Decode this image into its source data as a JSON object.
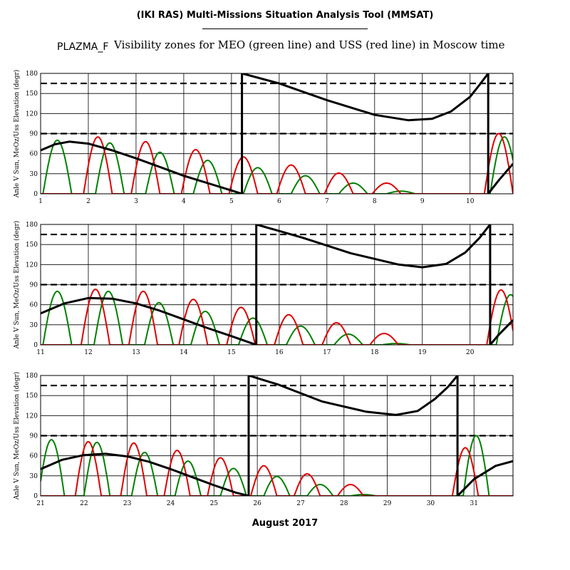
{
  "title": "(IKI RAS) Multi-Missions Situation Analysis Tool (MMSAT)",
  "prefix": "PLAZMA_F",
  "subtitle": "Visibility zones for MEO (green line) and USS (red line) in Moscow time",
  "xlabel": "August 2017",
  "colors": {
    "meo": "#008000",
    "uss": "#e00000",
    "sun": "#000000"
  },
  "chart_data": [
    {
      "type": "line",
      "ylabel": "Anle V Sun, MeOz/Uss Elevation (degr)",
      "xlim": [
        1,
        10.9
      ],
      "ylim": [
        0,
        180
      ],
      "xticks": [
        "1",
        "2",
        "3",
        "4",
        "5",
        "6",
        "7",
        "8",
        "9",
        "10"
      ],
      "yticks": [
        "0",
        "30",
        "60",
        "90",
        "120",
        "150",
        "180"
      ],
      "reference_lines_dashed": [
        90,
        165
      ],
      "sun_angle": {
        "segments": [
          {
            "x": [
              1.0,
              1.3,
              1.6,
              2.0,
              2.5,
              3.0,
              3.5,
              4.0,
              4.5,
              5.0,
              5.22
            ],
            "y": [
              65,
              74,
              78,
              75,
              65,
              53,
              40,
              27,
              16,
              5,
              0
            ]
          },
          {
            "x": [
              5.22,
              5.22,
              6.0,
              7.0,
              8.0,
              8.7,
              9.2,
              9.6,
              10.0,
              10.2,
              10.38
            ],
            "y": [
              0,
              180,
              165,
              140,
              118,
              110,
              112,
              123,
              145,
              163,
              180
            ]
          },
          {
            "x": [
              10.38,
              10.38,
              10.6,
              10.9
            ],
            "y": [
              180,
              0,
              20,
              45
            ]
          }
        ]
      },
      "meo_peaks": {
        "x": [
          1.35,
          2.45,
          3.5,
          4.5,
          5.55,
          6.55,
          7.55,
          8.55,
          9.55,
          10.72
        ],
        "y": [
          80,
          76,
          62,
          50,
          39,
          27,
          16,
          4,
          0,
          85
        ]
      },
      "uss_peaks": {
        "x": [
          2.2,
          3.2,
          4.25,
          5.25,
          6.25,
          7.25,
          8.25,
          10.6
        ],
        "y": [
          85,
          78,
          66,
          55,
          43,
          31,
          16,
          90
        ]
      }
    },
    {
      "type": "line",
      "ylabel": "Anle V Sun, MeOz/Uss Elevation (degr)",
      "xlim": [
        11,
        20.9
      ],
      "ylim": [
        0,
        180
      ],
      "xticks": [
        "11",
        "12",
        "13",
        "14",
        "15",
        "16",
        "17",
        "18",
        "19",
        "20"
      ],
      "yticks": [
        "0",
        "30",
        "60",
        "90",
        "120",
        "150",
        "180"
      ],
      "reference_lines_dashed": [
        90,
        165
      ],
      "sun_angle": {
        "segments": [
          {
            "x": [
              11.0,
              11.5,
              12.0,
              12.5,
              13.0,
              13.5,
              14.0,
              14.5,
              15.0,
              15.52
            ],
            "y": [
              47,
              62,
              70,
              69,
              62,
              51,
              38,
              25,
              13,
              0
            ]
          },
          {
            "x": [
              15.52,
              15.52,
              16.5,
              17.5,
              18.5,
              19.0,
              19.5,
              19.9,
              20.2,
              20.42
            ],
            "y": [
              0,
              180,
              160,
              137,
              120,
              116,
              121,
              138,
              160,
              180
            ]
          },
          {
            "x": [
              20.42,
              20.42,
              20.6,
              20.9
            ],
            "y": [
              180,
              0,
              15,
              37
            ]
          }
        ]
      },
      "meo_peaks": {
        "x": [
          11.35,
          12.42,
          13.48,
          14.45,
          15.45,
          16.45,
          17.45,
          18.45,
          19.45,
          20.85
        ],
        "y": [
          80,
          80,
          63,
          50,
          40,
          28,
          16,
          2,
          0,
          75
        ]
      },
      "uss_peaks": {
        "x": [
          12.15,
          13.15,
          14.2,
          15.2,
          16.2,
          17.2,
          18.2,
          20.65
        ],
        "y": [
          83,
          80,
          68,
          56,
          45,
          33,
          17,
          82
        ]
      }
    },
    {
      "type": "line",
      "ylabel": "Anle V Sun, MeOz/Uss Elevation (degr)",
      "xlim": [
        21,
        31.9
      ],
      "ylim": [
        0,
        180
      ],
      "xticks": [
        "21",
        "22",
        "23",
        "24",
        "25",
        "26",
        "27",
        "28",
        "29",
        "30",
        "31"
      ],
      "yticks": [
        "0",
        "30",
        "60",
        "90",
        "120",
        "150",
        "180"
      ],
      "reference_lines_dashed": [
        90,
        165
      ],
      "sun_angle": {
        "segments": [
          {
            "x": [
              21.0,
              21.5,
              22.0,
              22.5,
              23.0,
              23.5,
              24.0,
              24.5,
              25.0,
              25.5,
              25.8
            ],
            "y": [
              40,
              54,
              61,
              63,
              59,
              51,
              40,
              28,
              16,
              5,
              0
            ]
          },
          {
            "x": [
              25.8,
              25.8,
              26.5,
              27.5,
              28.5,
              29.2,
              29.7,
              30.1,
              30.4,
              30.62
            ],
            "y": [
              0,
              180,
              166,
              141,
              126,
              121,
              127,
              145,
              163,
              180
            ]
          },
          {
            "x": [
              30.62,
              30.62,
              31.0,
              31.5,
              31.9
            ],
            "y": [
              180,
              0,
              25,
              45,
              52
            ]
          }
        ]
      },
      "meo_peaks": {
        "x": [
          21.25,
          22.3,
          23.4,
          24.4,
          25.45,
          26.45,
          27.45,
          28.45,
          29.45,
          31.05
        ],
        "y": [
          84,
          80,
          65,
          52,
          41,
          29,
          17,
          2,
          0,
          90
        ]
      },
      "uss_peaks": {
        "x": [
          22.1,
          23.15,
          24.15,
          25.15,
          26.15,
          27.15,
          28.15,
          30.8
        ],
        "y": [
          81,
          79,
          68,
          57,
          45,
          33,
          17,
          72
        ]
      }
    }
  ]
}
